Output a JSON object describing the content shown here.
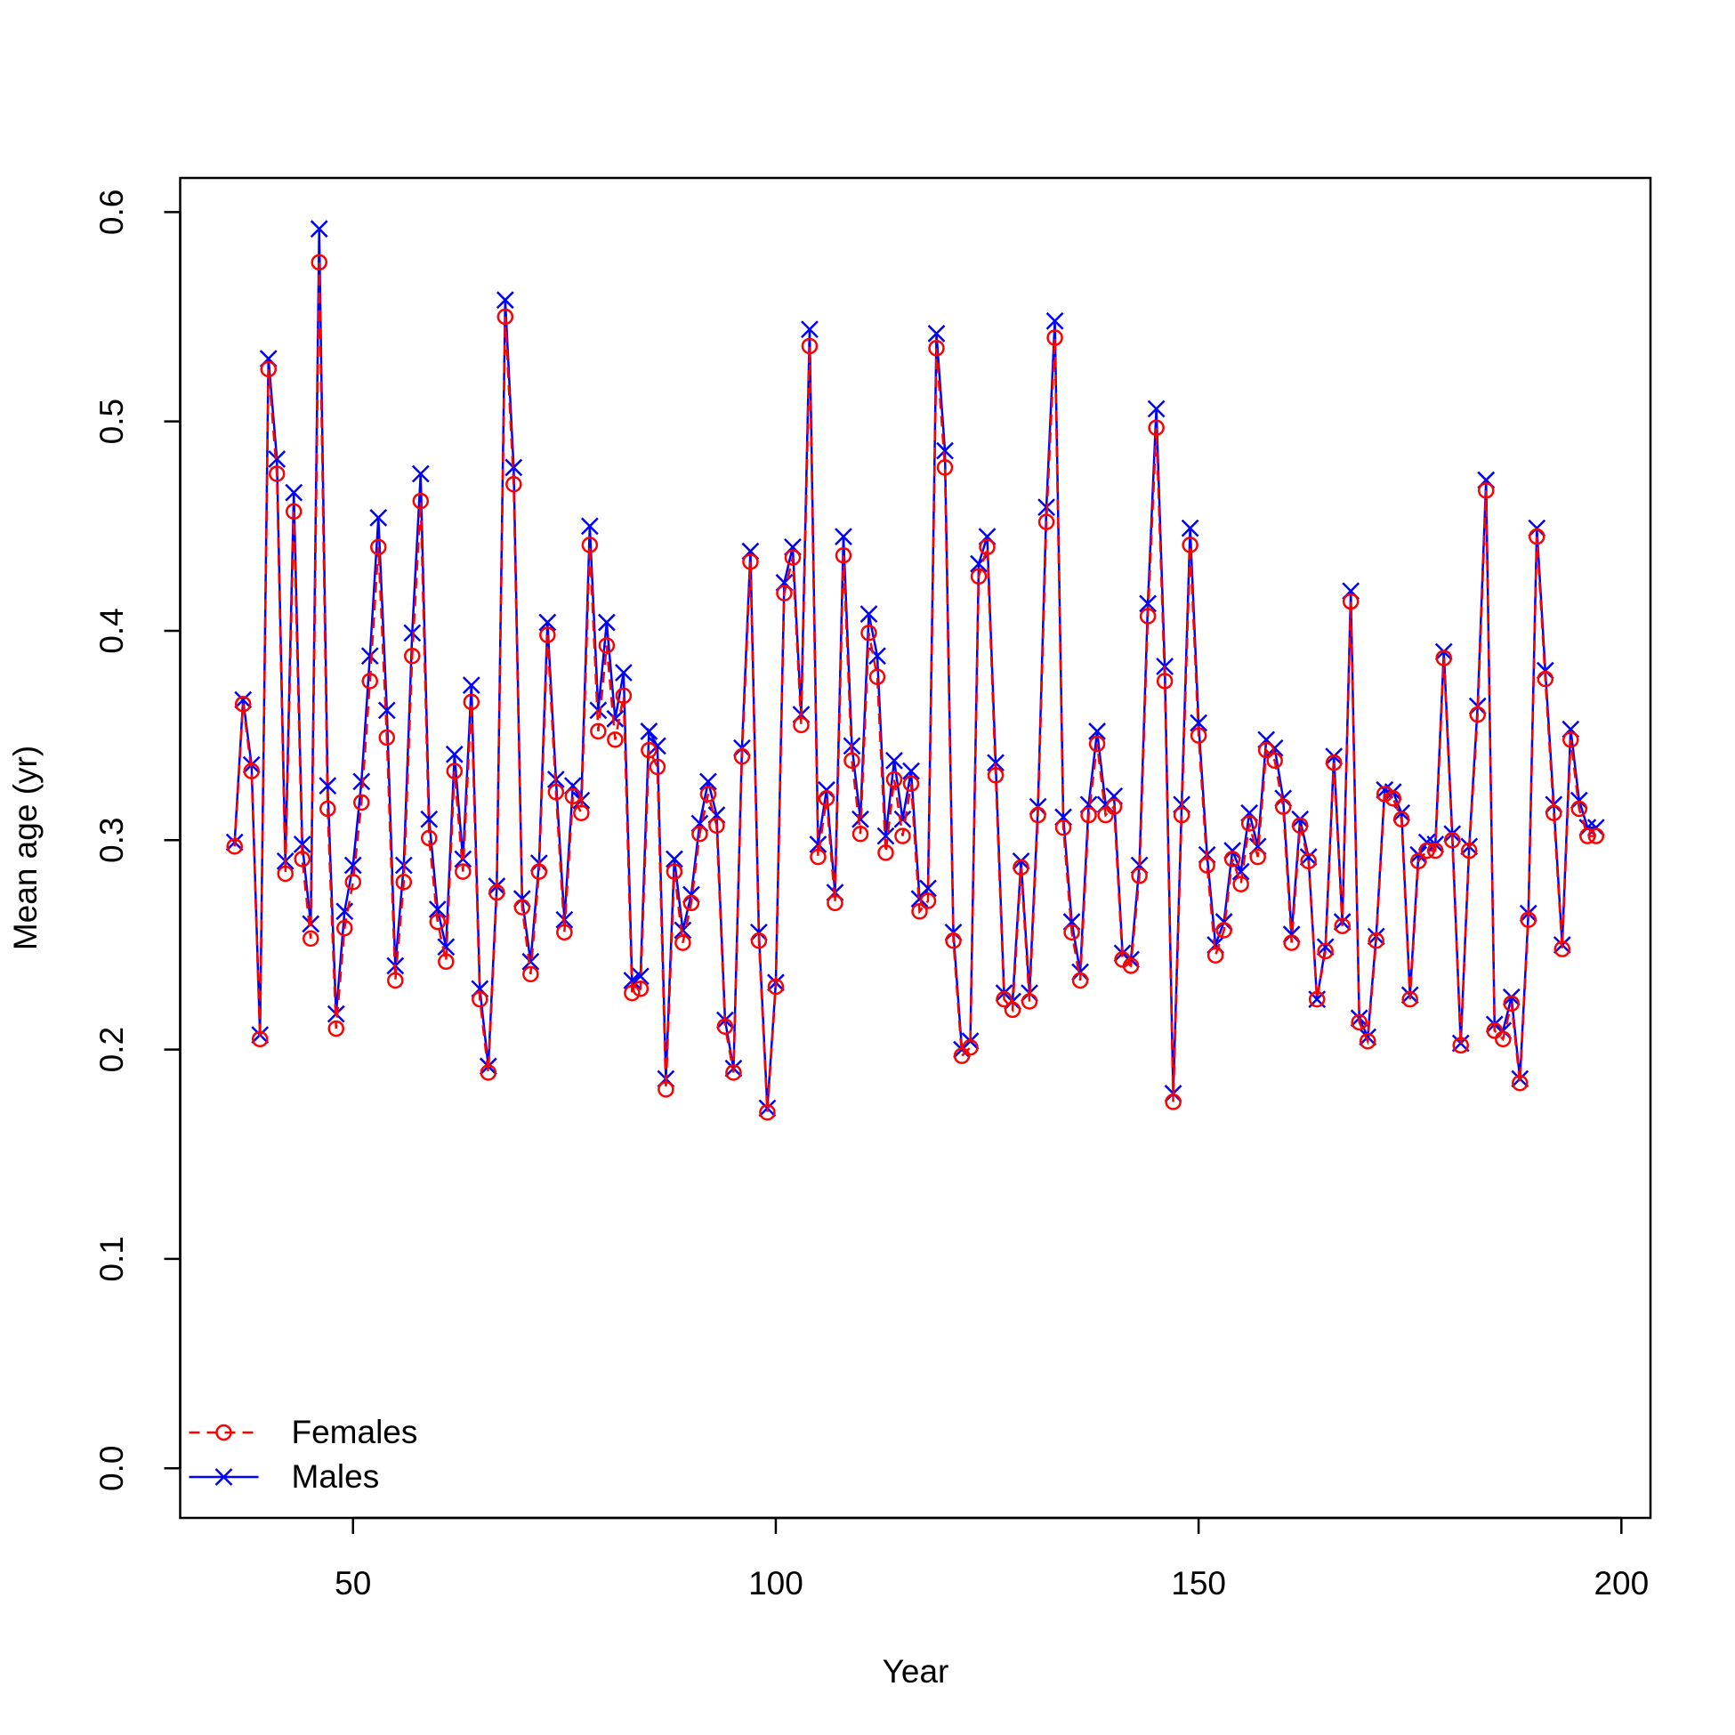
{
  "chart_data": {
    "type": "line",
    "xlabel": "Year",
    "ylabel": "Mean age (yr)",
    "x": [
      36,
      37,
      38,
      39,
      40,
      41,
      42,
      43,
      44,
      45,
      46,
      47,
      48,
      49,
      50,
      51,
      52,
      53,
      54,
      55,
      56,
      57,
      58,
      59,
      60,
      61,
      62,
      63,
      64,
      65,
      66,
      67,
      68,
      69,
      70,
      71,
      72,
      73,
      74,
      75,
      76,
      77,
      78,
      79,
      80,
      81,
      82,
      83,
      84,
      85,
      86,
      87,
      88,
      89,
      90,
      91,
      92,
      93,
      94,
      95,
      96,
      97,
      98,
      99,
      100,
      101,
      102,
      103,
      104,
      105,
      106,
      107,
      108,
      109,
      110,
      111,
      112,
      113,
      114,
      115,
      116,
      117,
      118,
      119,
      120,
      121,
      122,
      123,
      124,
      125,
      126,
      127,
      128,
      129,
      130,
      131,
      132,
      133,
      134,
      135,
      136,
      137,
      138,
      139,
      140,
      141,
      142,
      143,
      144,
      145,
      146,
      147,
      148,
      149,
      150,
      151,
      152,
      153,
      154,
      155,
      156,
      157,
      158,
      159,
      160,
      161,
      162,
      163,
      164,
      165,
      166,
      167,
      168,
      169,
      170,
      171,
      172,
      173,
      174,
      175,
      176,
      177,
      178,
      179,
      180,
      181,
      182,
      183,
      184,
      185,
      186,
      187,
      188,
      189,
      190,
      191,
      192,
      193,
      194,
      195,
      196,
      197
    ],
    "series": [
      {
        "name": "Males",
        "color": "#0000ff",
        "dash": false,
        "marker": "x",
        "values": [
          0.299,
          0.367,
          0.336,
          0.207,
          0.53,
          0.482,
          0.29,
          0.466,
          0.298,
          0.26,
          0.592,
          0.326,
          0.217,
          0.266,
          0.288,
          0.328,
          0.388,
          0.454,
          0.362,
          0.24,
          0.288,
          0.399,
          0.475,
          0.31,
          0.267,
          0.249,
          0.341,
          0.291,
          0.374,
          0.229,
          0.192,
          0.278,
          0.558,
          0.478,
          0.272,
          0.242,
          0.289,
          0.404,
          0.329,
          0.262,
          0.326,
          0.319,
          0.45,
          0.362,
          0.404,
          0.358,
          0.38,
          0.233,
          0.235,
          0.352,
          0.345,
          0.186,
          0.291,
          0.257,
          0.274,
          0.308,
          0.328,
          0.312,
          0.214,
          0.191,
          0.344,
          0.438,
          0.256,
          0.172,
          0.232,
          0.423,
          0.44,
          0.36,
          0.544,
          0.298,
          0.324,
          0.275,
          0.445,
          0.345,
          0.31,
          0.408,
          0.388,
          0.302,
          0.338,
          0.31,
          0.333,
          0.272,
          0.277,
          0.542,
          0.486,
          0.256,
          0.2,
          0.204,
          0.432,
          0.445,
          0.337,
          0.227,
          0.223,
          0.29,
          0.227,
          0.316,
          0.459,
          0.548,
          0.311,
          0.261,
          0.237,
          0.317,
          0.352,
          0.317,
          0.321,
          0.246,
          0.243,
          0.288,
          0.413,
          0.506,
          0.383,
          0.179,
          0.317,
          0.449,
          0.356,
          0.293,
          0.25,
          0.261,
          0.295,
          0.285,
          0.313,
          0.297,
          0.348,
          0.344,
          0.32,
          0.255,
          0.31,
          0.292,
          0.224,
          0.249,
          0.34,
          0.261,
          0.419,
          0.215,
          0.206,
          0.254,
          0.324,
          0.323,
          0.313,
          0.226,
          0.293,
          0.299,
          0.298,
          0.39,
          0.303,
          0.203,
          0.297,
          0.364,
          0.472,
          0.212,
          0.209,
          0.225,
          0.186,
          0.265,
          0.449,
          0.381,
          0.317,
          0.25,
          0.353,
          0.319,
          0.306,
          0.306
        ]
      },
      {
        "name": "Females",
        "color": "#ff0000",
        "dash": true,
        "marker": "circle",
        "values": [
          0.297,
          0.365,
          0.333,
          0.205,
          0.525,
          0.475,
          0.284,
          0.457,
          0.291,
          0.253,
          0.576,
          0.315,
          0.21,
          0.258,
          0.28,
          0.318,
          0.376,
          0.44,
          0.349,
          0.233,
          0.28,
          0.388,
          0.462,
          0.301,
          0.261,
          0.242,
          0.333,
          0.285,
          0.366,
          0.224,
          0.189,
          0.275,
          0.55,
          0.47,
          0.268,
          0.236,
          0.285,
          0.398,
          0.323,
          0.256,
          0.321,
          0.313,
          0.441,
          0.352,
          0.393,
          0.348,
          0.369,
          0.227,
          0.229,
          0.343,
          0.335,
          0.181,
          0.285,
          0.251,
          0.27,
          0.303,
          0.322,
          0.307,
          0.211,
          0.189,
          0.34,
          0.433,
          0.252,
          0.17,
          0.23,
          0.418,
          0.435,
          0.355,
          0.536,
          0.292,
          0.32,
          0.27,
          0.436,
          0.338,
          0.303,
          0.399,
          0.378,
          0.294,
          0.329,
          0.302,
          0.327,
          0.266,
          0.271,
          0.535,
          0.478,
          0.252,
          0.197,
          0.201,
          0.426,
          0.44,
          0.331,
          0.224,
          0.219,
          0.287,
          0.223,
          0.312,
          0.452,
          0.54,
          0.306,
          0.256,
          0.233,
          0.312,
          0.346,
          0.312,
          0.316,
          0.243,
          0.24,
          0.283,
          0.407,
          0.497,
          0.376,
          0.175,
          0.312,
          0.441,
          0.35,
          0.288,
          0.245,
          0.257,
          0.291,
          0.279,
          0.308,
          0.292,
          0.343,
          0.338,
          0.316,
          0.251,
          0.307,
          0.29,
          0.224,
          0.247,
          0.337,
          0.259,
          0.414,
          0.213,
          0.204,
          0.252,
          0.322,
          0.32,
          0.31,
          0.224,
          0.29,
          0.295,
          0.295,
          0.387,
          0.3,
          0.202,
          0.295,
          0.36,
          0.467,
          0.209,
          0.205,
          0.222,
          0.184,
          0.262,
          0.445,
          0.377,
          0.313,
          0.248,
          0.348,
          0.315,
          0.302,
          0.302
        ]
      }
    ],
    "legend_series_order": [
      "Females",
      "Males"
    ],
    "legend": "bottomleft",
    "xlim": [
      29.56,
      203.44
    ],
    "xticks": [
      50,
      100,
      150,
      200
    ],
    "ylim": [
      -0.0237,
      0.6163
    ],
    "yticks": [
      {
        "value": 0,
        "label": "0.0"
      },
      0.1,
      0.2,
      0.3,
      0.4,
      0.5,
      0.6
    ],
    "grid": false
  }
}
